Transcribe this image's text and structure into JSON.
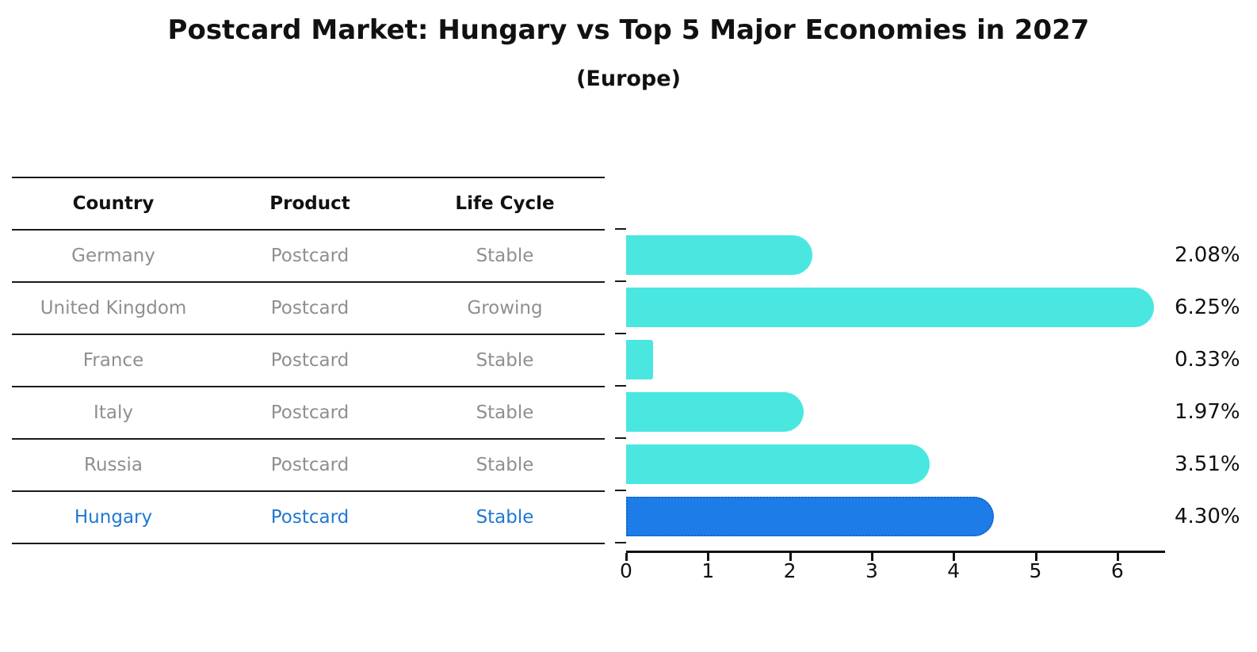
{
  "title": "Postcard Market: Hungary vs Top 5 Major Economies in 2027",
  "subtitle": "(Europe)",
  "table": {
    "headers": [
      "Country",
      "Product",
      "Life Cycle"
    ],
    "rows": [
      {
        "country": "Germany",
        "product": "Postcard",
        "life_cycle": "Stable",
        "highlight": false
      },
      {
        "country": "United Kingdom",
        "product": "Postcard",
        "life_cycle": "Growing",
        "highlight": false
      },
      {
        "country": "France",
        "product": "Postcard",
        "life_cycle": "Stable",
        "highlight": false
      },
      {
        "country": "Italy",
        "product": "Postcard",
        "life_cycle": "Stable",
        "highlight": false
      },
      {
        "country": "Russia",
        "product": "Postcard",
        "life_cycle": "Stable",
        "highlight": false
      },
      {
        "country": "Hungary",
        "product": "Postcard",
        "life_cycle": "Stable",
        "highlight": true
      }
    ]
  },
  "chart_data": {
    "type": "bar",
    "orientation": "horizontal",
    "title": "Postcard Market: Hungary vs Top 5 Major Economies in 2027",
    "subtitle": "(Europe)",
    "categories": [
      "Germany",
      "United Kingdom",
      "France",
      "Italy",
      "Russia",
      "Hungary"
    ],
    "values": [
      2.08,
      6.25,
      0.33,
      1.97,
      3.51,
      4.3
    ],
    "value_labels": [
      "2.08%",
      "6.25%",
      "0.33%",
      "1.97%",
      "3.51%",
      "4.30%"
    ],
    "x_ticks": [
      "0",
      "1",
      "2",
      "3",
      "4",
      "5",
      "6"
    ],
    "xlim": [
      0,
      6.6
    ],
    "grid": false,
    "legend": "none",
    "highlight_index": 5,
    "colors": {
      "bar": "#4ae7e1",
      "highlight_bar": "#1e7ce8",
      "highlight_bar_border": "#1565c8",
      "row_text": "#8f8f8f",
      "highlight_text": "#1f78d1",
      "axis": "#111111"
    }
  }
}
